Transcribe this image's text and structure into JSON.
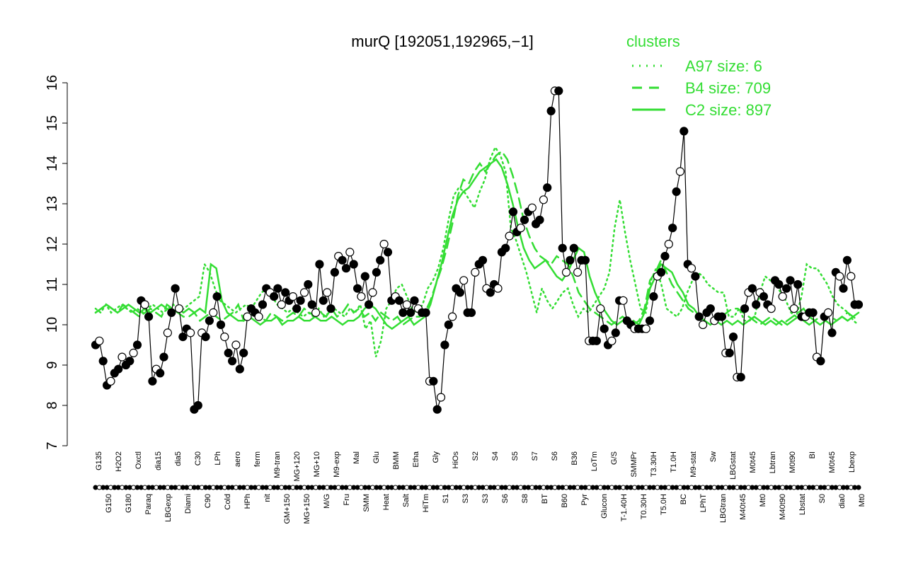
{
  "chart_data": {
    "type": "line",
    "title": "murQ [192051,192965,−1]",
    "xlabel": "",
    "ylabel": "",
    "ylim": [
      7,
      16
    ],
    "yticks": [
      7,
      8,
      9,
      10,
      11,
      12,
      13,
      14,
      15,
      16
    ],
    "legend": {
      "title": "clusters",
      "position": "top-right",
      "entries": [
        {
          "label": "A97 size: 6",
          "style": "dotted"
        },
        {
          "label": "B4 size: 709",
          "style": "dashed"
        },
        {
          "label": "C2 size: 897",
          "style": "solid"
        }
      ]
    },
    "x_tick_labels_top": [
      "G135",
      "H2O2",
      "Oxctl",
      "dia15",
      "dia5",
      "C30",
      "LPh",
      "aero",
      "ferm",
      "M9-tran",
      "MG+120",
      "MG+10",
      "M9-exp",
      "Mal",
      "Glu",
      "BMM",
      "Etha",
      "Gly",
      "HiOs",
      "S2",
      "S4",
      "S5",
      "S7",
      "S6",
      "B36",
      "LoTm",
      "G/S",
      "SMMPr",
      "T3.30H",
      "T1.0H",
      "M9-stat",
      "Sw",
      "LBGstat",
      "M0t45",
      "Lbtran",
      "M0t90",
      "BI",
      "M0t45",
      "Lbexp"
    ],
    "x_tick_labels_bottom": [
      "G150",
      "G180",
      "Paraq",
      "LBGexp",
      "Diami",
      "C90",
      "Cold",
      "HPh",
      "nit",
      "GM+150",
      "MG+150",
      "M/G",
      "Fru",
      "SMM",
      "Heat",
      "Salt",
      "HiTm",
      "S1",
      "S3",
      "S3",
      "S6",
      "S8",
      "BT",
      "B60",
      "Pyr",
      "Glucon",
      "T-1.40H",
      "T0.30H",
      "T5.0H",
      "BC",
      "LPhT",
      "LBGtran",
      "M40t45",
      "Mt0",
      "M40t90",
      "Lbstat",
      "S0",
      "dia0",
      "Mt0"
    ],
    "series": [
      {
        "values": [
          9.5,
          9.6,
          9.1,
          8.5,
          8.6,
          8.8,
          8.9,
          9.2,
          9.0,
          9.1,
          9.3,
          9.5,
          10.6,
          10.5,
          10.2,
          8.6,
          8.9,
          8.8,
          9.2,
          9.8,
          10.3,
          10.9,
          10.4,
          9.7,
          9.9,
          9.8,
          7.9,
          8.0,
          9.8,
          9.7,
          10.1,
          10.3,
          10.7,
          10.0,
          9.7,
          9.3,
          9.1,
          9.5,
          8.9,
          9.3,
          10.2,
          10.4,
          10.3,
          10.2,
          10.5,
          10.9,
          10.8,
          10.7,
          10.9,
          10.5,
          10.8,
          10.6,
          10.7,
          10.4,
          10.6,
          10.8,
          11.0,
          10.5,
          10.3,
          11.5,
          10.6,
          10.8,
          10.4,
          11.3,
          11.7,
          11.6,
          11.4,
          11.8,
          11.5,
          10.9,
          10.7,
          11.2,
          10.5,
          10.8,
          11.3,
          11.6,
          12.0,
          11.8,
          10.6,
          10.7,
          10.6,
          10.3,
          10.5,
          10.3,
          10.6,
          10.4,
          10.3,
          10.3,
          8.6,
          8.6,
          7.9,
          8.2,
          9.5,
          10.0,
          10.2,
          10.9,
          10.8,
          11.1,
          10.3,
          10.3,
          11.3,
          11.5,
          11.6,
          10.9,
          10.8,
          11.0,
          10.9,
          11.8,
          11.9,
          12.2,
          12.8,
          12.3,
          12.4,
          12.6,
          12.8,
          12.9,
          12.5,
          12.6,
          13.1,
          13.4,
          15.3,
          15.8,
          15.8,
          11.9,
          11.3,
          11.6,
          11.9,
          11.3,
          11.6,
          11.6,
          9.6,
          9.6,
          9.6,
          10.4,
          9.9,
          9.5,
          9.6,
          9.8,
          10.6,
          10.6,
          10.1,
          10.0,
          9.9,
          9.9,
          9.9,
          9.9,
          10.1,
          10.7,
          11.2,
          11.3,
          11.7,
          12.0,
          12.4,
          13.3,
          13.8,
          14.8,
          11.5,
          11.4,
          11.2,
          10.2,
          10.0,
          10.3,
          10.4,
          10.1,
          10.2,
          10.2,
          9.3,
          9.3,
          9.7,
          8.7,
          8.7,
          10.4,
          10.8,
          10.9,
          10.5,
          10.8,
          10.7,
          10.5,
          10.4,
          11.1,
          11.0,
          10.7,
          10.9,
          11.1,
          10.4,
          11.0,
          10.2,
          10.2,
          10.3,
          10.3,
          9.2,
          9.1,
          10.2,
          10.3,
          9.8,
          11.3,
          11.2,
          10.9,
          11.6,
          11.2,
          10.5,
          10.5
        ]
      }
    ],
    "cluster_lines": {
      "A97": [
        10.4,
        10.3,
        10.5,
        10.3,
        10.4,
        10.5,
        10.4,
        10.3,
        10.4,
        10.3,
        10.4,
        10.5,
        10.4,
        10.3,
        10.4,
        10.5,
        10.3,
        10.4,
        10.5,
        10.6,
        10.7,
        11.5,
        11.3,
        10.9,
        10.6,
        10.5,
        10.4,
        10.3,
        10.4,
        10.5,
        10.4,
        10.6,
        10.8,
        10.9,
        10.7,
        10.5,
        10.4,
        10.3,
        10.4,
        10.3,
        10.2,
        10.3,
        10.2,
        10.4,
        10.2,
        10.3,
        10.4,
        10.3,
        10.2,
        10.4,
        10.3,
        10.5,
        9.9,
        10.1,
        9.2,
        9.6,
        10.4,
        10.6,
        10.9,
        11.0,
        10.7,
        10.4,
        10.3,
        10.5,
        10.9,
        11.1,
        11.4,
        11.9,
        12.6,
        13.2,
        13.4,
        13.3,
        13.1,
        12.9,
        13.3,
        13.6,
        14.1,
        14.4,
        14.2,
        13.8,
        12.4,
        12.1,
        11.7,
        11.3,
        10.8,
        10.3,
        10.9,
        10.6,
        10.4,
        10.6,
        10.8,
        10.9,
        10.5,
        10.2,
        10.4,
        10.3,
        10.5,
        10.7,
        10.9,
        11.3,
        12.4,
        13.1,
        12.3,
        11.6,
        11.0,
        10.4,
        10.3,
        11.1,
        11.4,
        11.0,
        10.4,
        10.3,
        10.2,
        10.4,
        10.8,
        11.1,
        11.3,
        11.2,
        11.0,
        10.9,
        10.8,
        10.8,
        10.2,
        10.2,
        10.4,
        10.1,
        10.1,
        10.2,
        10.8,
        11.2,
        11.1,
        11.0,
        10.8,
        10.6,
        10.3,
        10.2,
        10.7,
        11.5,
        11.4,
        11.4,
        11.2,
        11.0,
        10.7,
        10.5,
        10.4,
        10.3,
        10.1,
        10.0
      ],
      "B4": [
        10.3,
        10.4,
        10.5,
        10.4,
        10.3,
        10.5,
        10.4,
        10.3,
        10.2,
        10.3,
        10.4,
        10.3,
        10.2,
        10.5,
        10.4,
        10.3,
        10.2,
        10.2,
        10.3,
        10.1,
        10.2,
        10.3,
        10.2,
        10.1,
        10.2,
        10.3,
        10.5,
        10.1,
        10.2,
        10.3,
        10.2,
        10.1,
        10.3,
        10.2,
        10.1,
        10.2,
        10.3,
        10.2,
        10.4,
        10.3,
        10.2,
        10.3,
        10.2,
        10.4,
        10.2,
        10.3,
        10.5,
        10.3,
        10.4,
        10.2,
        10.3,
        10.1,
        10.3,
        10.2,
        10.1,
        10.2,
        10.0,
        10.1,
        10.2,
        10.2,
        10.3,
        10.6,
        11.0,
        11.4,
        11.9,
        12.5,
        13.2,
        13.6,
        13.5,
        13.8,
        14.0,
        13.8,
        14.0,
        14.2,
        14.3,
        14.1,
        13.7,
        13.2,
        12.6,
        12.2,
        11.9,
        11.7,
        11.6,
        11.5,
        11.7,
        11.6,
        11.5,
        11.2,
        10.8,
        10.6,
        10.4,
        10.3,
        10.2,
        10.1,
        10.0,
        10.1,
        10.2,
        10.1,
        10.0,
        10.1,
        10.4,
        11.1,
        11.3,
        11.6,
        11.3,
        11.0,
        10.8,
        10.6,
        10.4,
        10.3,
        10.2,
        10.1,
        10.0,
        10.1,
        10.2,
        10.3,
        10.4,
        10.4,
        10.3,
        10.2,
        10.1,
        10.0,
        10.1,
        10.2,
        10.1,
        10.0,
        10.1,
        10.2,
        10.3,
        10.4,
        10.2,
        10.1,
        10.2,
        10.3,
        10.2,
        10.1,
        10.2,
        10.3,
        10.2,
        10.1
      ],
      "C2": [
        10.3,
        10.4,
        10.5,
        10.4,
        10.3,
        10.4,
        10.5,
        10.4,
        10.3,
        10.4,
        10.3,
        10.4,
        10.5,
        10.4,
        10.3,
        10.4,
        10.3,
        10.4,
        10.3,
        10.4,
        10.3,
        11.5,
        11.4,
        10.6,
        10.3,
        10.2,
        10.1,
        10.1,
        10.2,
        10.1,
        10.0,
        10.1,
        10.1,
        10.2,
        10.0,
        10.1,
        10.1,
        10.2,
        10.1,
        10.1,
        10.2,
        10.1,
        10.1,
        10.2,
        10.1,
        10.0,
        10.1,
        10.1,
        10.2,
        10.4,
        10.5,
        10.4,
        10.2,
        10.0,
        9.9,
        10.0,
        10.1,
        10.2,
        10.0,
        10.1,
        10.2,
        10.5,
        11.0,
        11.5,
        12.1,
        12.7,
        13.1,
        13.3,
        13.4,
        13.6,
        13.8,
        13.9,
        14.0,
        14.1,
        13.9,
        13.5,
        13.0,
        12.4,
        11.9,
        11.6,
        11.4,
        11.5,
        11.6,
        11.4,
        11.2,
        11.1,
        11.3,
        11.6,
        11.9,
        11.8,
        11.2,
        10.8,
        10.5,
        10.3,
        10.1,
        10.0,
        10.1,
        10.0,
        10.1,
        10.0,
        10.3,
        10.9,
        11.2,
        11.5,
        11.4,
        11.3,
        11.0,
        10.8,
        10.5,
        10.4,
        10.2,
        10.1,
        10.0,
        10.1,
        10.0,
        10.1,
        10.0,
        10.1,
        10.0,
        10.1,
        10.2,
        10.1,
        10.0,
        10.1,
        10.0,
        10.1,
        10.0,
        10.1,
        10.2,
        10.1,
        10.0,
        10.1,
        10.0,
        10.1,
        10.0,
        10.1,
        10.2,
        10.1,
        10.2,
        10.3
      ]
    }
  }
}
